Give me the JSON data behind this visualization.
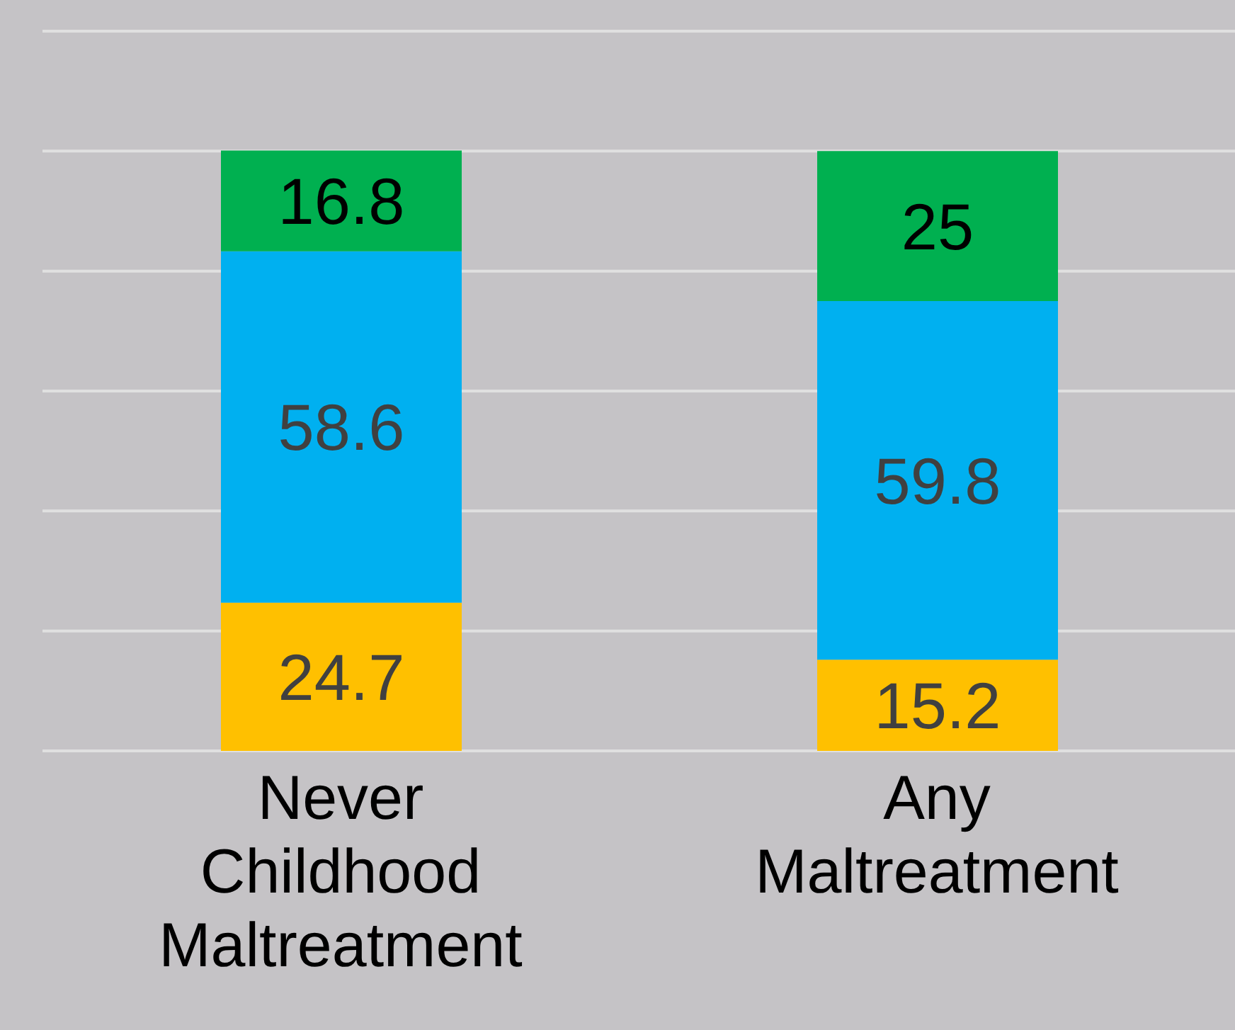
{
  "chart_data": {
    "type": "bar",
    "stacked": true,
    "categories": [
      "Never Childhood Maltreatment",
      "Any Maltreatment"
    ],
    "series": [
      {
        "color": "#ffc000",
        "values": [
          24.7,
          15.2
        ]
      },
      {
        "color": "#00b0f0",
        "values": [
          58.6,
          59.8
        ]
      },
      {
        "color": "#00b050",
        "values": [
          16.8,
          25
        ]
      }
    ],
    "ylim": [
      0,
      120
    ],
    "yticks": [
      {
        "value": 0,
        "label": null
      },
      {
        "value": 20,
        "label": null
      },
      {
        "value": 40,
        "label": null
      },
      {
        "value": 60,
        "label": null
      },
      {
        "value": 80,
        "label": null
      },
      {
        "value": 100,
        "label": null
      },
      {
        "value": 120,
        "label": null
      }
    ],
    "grid": "y",
    "tick_labels": "x",
    "data_labels": true,
    "legend": false
  }
}
